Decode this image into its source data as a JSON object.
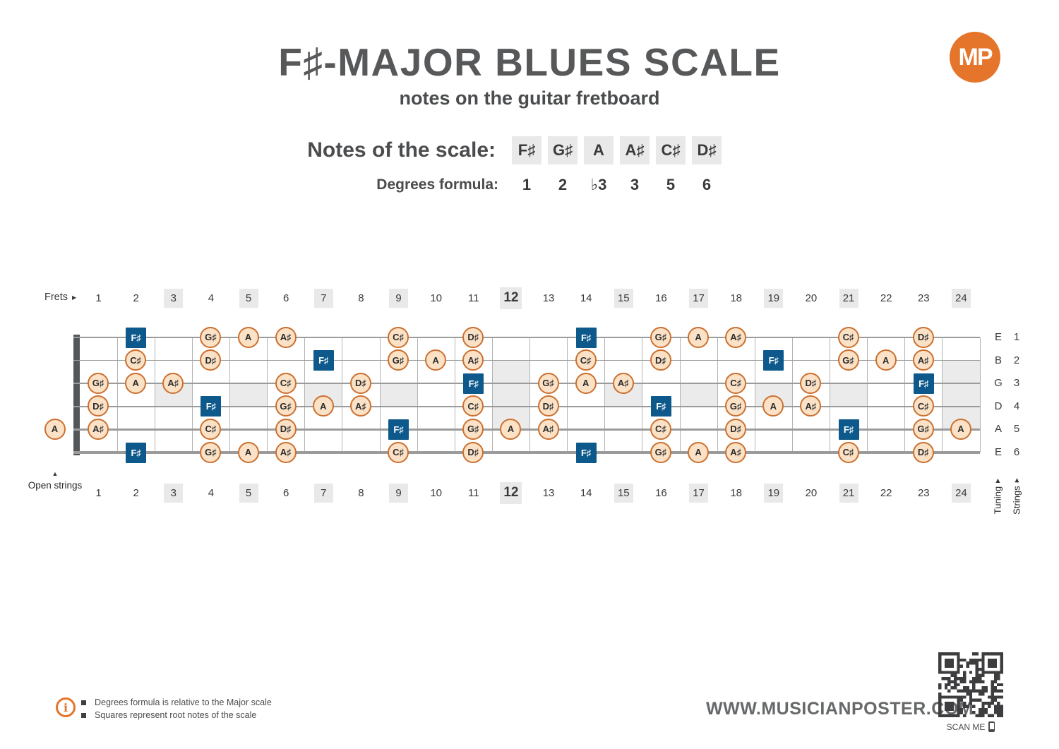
{
  "header": {
    "title": "F♯-MAJOR BLUES SCALE",
    "subtitle": "notes on the guitar fretboard",
    "logo": "MP"
  },
  "scale": {
    "notes_label": "Notes of the scale:",
    "notes": [
      "F♯",
      "G♯",
      "A",
      "A♯",
      "C♯",
      "D♯"
    ],
    "degrees_label": "Degrees formula:",
    "degrees": [
      "1",
      "2",
      "♭3",
      "3",
      "5",
      "6"
    ]
  },
  "fretboard": {
    "frets_label": "Frets",
    "open_strings_label": "Open strings",
    "tuning_label": "Tuning",
    "strings_label": "Strings",
    "fret_count": 24,
    "single_marker_frets": [
      3,
      5,
      7,
      9,
      15,
      17,
      19,
      21
    ],
    "double_marker_frets": [
      12,
      24
    ],
    "bold_fret": 12,
    "open_note": {
      "string": 5,
      "label": "A"
    },
    "strings": [
      {
        "tuning": "E",
        "number": 1,
        "notes": [
          {
            "fret": 2,
            "label": "F♯",
            "root": true
          },
          {
            "fret": 4,
            "label": "G♯"
          },
          {
            "fret": 5,
            "label": "A"
          },
          {
            "fret": 6,
            "label": "A♯"
          },
          {
            "fret": 9,
            "label": "C♯"
          },
          {
            "fret": 11,
            "label": "D♯"
          },
          {
            "fret": 14,
            "label": "F♯",
            "root": true
          },
          {
            "fret": 16,
            "label": "G♯"
          },
          {
            "fret": 17,
            "label": "A"
          },
          {
            "fret": 18,
            "label": "A♯"
          },
          {
            "fret": 21,
            "label": "C♯"
          },
          {
            "fret": 23,
            "label": "D♯"
          }
        ]
      },
      {
        "tuning": "B",
        "number": 2,
        "notes": [
          {
            "fret": 2,
            "label": "C♯"
          },
          {
            "fret": 4,
            "label": "D♯"
          },
          {
            "fret": 7,
            "label": "F♯",
            "root": true
          },
          {
            "fret": 9,
            "label": "G♯"
          },
          {
            "fret": 10,
            "label": "A"
          },
          {
            "fret": 11,
            "label": "A♯"
          },
          {
            "fret": 14,
            "label": "C♯"
          },
          {
            "fret": 16,
            "label": "D♯"
          },
          {
            "fret": 19,
            "label": "F♯",
            "root": true
          },
          {
            "fret": 21,
            "label": "G♯"
          },
          {
            "fret": 22,
            "label": "A"
          },
          {
            "fret": 23,
            "label": "A♯"
          }
        ]
      },
      {
        "tuning": "G",
        "number": 3,
        "notes": [
          {
            "fret": 1,
            "label": "G♯"
          },
          {
            "fret": 2,
            "label": "A"
          },
          {
            "fret": 3,
            "label": "A♯"
          },
          {
            "fret": 6,
            "label": "C♯"
          },
          {
            "fret": 8,
            "label": "D♯"
          },
          {
            "fret": 11,
            "label": "F♯",
            "root": true
          },
          {
            "fret": 13,
            "label": "G♯"
          },
          {
            "fret": 14,
            "label": "A"
          },
          {
            "fret": 15,
            "label": "A♯"
          },
          {
            "fret": 18,
            "label": "C♯"
          },
          {
            "fret": 20,
            "label": "D♯"
          },
          {
            "fret": 23,
            "label": "F♯",
            "root": true
          }
        ]
      },
      {
        "tuning": "D",
        "number": 4,
        "notes": [
          {
            "fret": 1,
            "label": "D♯"
          },
          {
            "fret": 4,
            "label": "F♯",
            "root": true
          },
          {
            "fret": 6,
            "label": "G♯"
          },
          {
            "fret": 7,
            "label": "A"
          },
          {
            "fret": 8,
            "label": "A♯"
          },
          {
            "fret": 11,
            "label": "C♯"
          },
          {
            "fret": 13,
            "label": "D♯"
          },
          {
            "fret": 16,
            "label": "F♯",
            "root": true
          },
          {
            "fret": 18,
            "label": "G♯"
          },
          {
            "fret": 19,
            "label": "A"
          },
          {
            "fret": 20,
            "label": "A♯"
          },
          {
            "fret": 23,
            "label": "C♯"
          }
        ]
      },
      {
        "tuning": "A",
        "number": 5,
        "notes": [
          {
            "fret": 1,
            "label": "A♯"
          },
          {
            "fret": 4,
            "label": "C♯"
          },
          {
            "fret": 6,
            "label": "D♯"
          },
          {
            "fret": 9,
            "label": "F♯",
            "root": true
          },
          {
            "fret": 11,
            "label": "G♯"
          },
          {
            "fret": 12,
            "label": "A"
          },
          {
            "fret": 13,
            "label": "A♯"
          },
          {
            "fret": 16,
            "label": "C♯"
          },
          {
            "fret": 18,
            "label": "D♯"
          },
          {
            "fret": 21,
            "label": "F♯",
            "root": true
          },
          {
            "fret": 23,
            "label": "G♯"
          },
          {
            "fret": 24,
            "label": "A"
          }
        ]
      },
      {
        "tuning": "E",
        "number": 6,
        "notes": [
          {
            "fret": 2,
            "label": "F♯",
            "root": true
          },
          {
            "fret": 4,
            "label": "G♯"
          },
          {
            "fret": 5,
            "label": "A"
          },
          {
            "fret": 6,
            "label": "A♯"
          },
          {
            "fret": 9,
            "label": "C♯"
          },
          {
            "fret": 11,
            "label": "D♯"
          },
          {
            "fret": 14,
            "label": "F♯",
            "root": true
          },
          {
            "fret": 16,
            "label": "G♯"
          },
          {
            "fret": 17,
            "label": "A"
          },
          {
            "fret": 18,
            "label": "A♯"
          },
          {
            "fret": 21,
            "label": "C♯"
          },
          {
            "fret": 23,
            "label": "D♯"
          }
        ]
      }
    ]
  },
  "footer": {
    "info_icon_glyph": "i",
    "info_notes": [
      "Degrees formula is relative to the Major scale",
      "Squares represent root notes of the scale"
    ],
    "website": "WWW.MUSICIANPOSTER.COM",
    "scan_label": "SCAN ME"
  },
  "colors": {
    "accent_orange": "#e4752b",
    "root_blue": "#0e598c",
    "note_fill": "#fbe2c6",
    "note_border": "#cb7030",
    "highlight_gray": "#e9e9e9",
    "title_gray": "#57585a"
  }
}
